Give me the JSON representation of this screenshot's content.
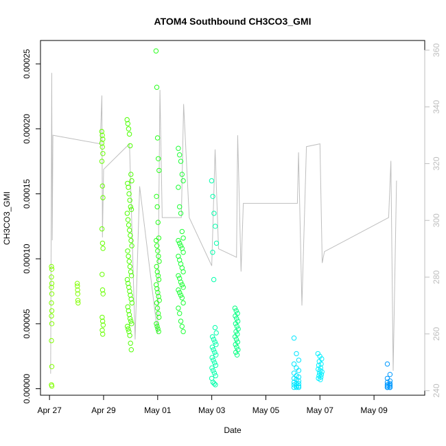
{
  "chart_data": {
    "type": "scatter",
    "title": "ATOM4 Southbound CH3CO3_GMI",
    "xlabel": "Date",
    "ylabel": "CH3CO3_GMI",
    "x_ticks": [
      "Apr 27",
      "Apr 29",
      "May 01",
      "May 03",
      "May 05",
      "May 07",
      "May 09"
    ],
    "y_ticks": [
      "0.00000",
      "0.00005",
      "0.00010",
      "0.00015",
      "0.00020",
      "0.00025"
    ],
    "y2_ticks": [
      "240",
      "260",
      "280",
      "300",
      "320",
      "340",
      "360"
    ],
    "xlim": [
      "2018-04-26T16:00",
      "2018-05-10T21:00"
    ],
    "ylim": [
      -5e-06,
      0.000268
    ],
    "y2lim": [
      238.4,
      363.4
    ],
    "grid": false,
    "colors": {
      "secondary_line": "#bebebe",
      "axis": "#000000",
      "right_axis": "#bebebe",
      "palette": [
        "#80ff00",
        "#33ff00",
        "#00ff4d",
        "#00ff80",
        "#00ffcc",
        "#00e6ff",
        "#00c8ff",
        "#0099ff"
      ]
    },
    "series": [
      {
        "clusters": [
          {
            "t": "2018-04-27T02:00",
            "dt": 0.02,
            "c": "#80ff00",
            "y": [
              9.4e-05,
              9.2e-05,
              8.6e-05,
              8.1e-05,
              7.8e-05,
              7.3e-05,
              6.6e-05,
              6e-05,
              5.6e-05,
              5e-05,
              3.7e-05,
              1.7e-05,
              3e-06,
              2e-06
            ]
          },
          {
            "t": "2018-04-28T01:00",
            "dt": 0.03,
            "c": "#80ff00",
            "y": [
              8.1e-05,
              7.9e-05,
              7.6e-05,
              7.3e-05,
              6.8e-05,
              6.6e-05
            ]
          },
          {
            "t": "2018-04-28T23:00",
            "dt": 0.05,
            "c": "#66ff00",
            "y": [
              0.000198,
              0.000195,
              0.000192,
              0.000189,
              0.000186,
              0.000181,
              0.000175,
              0.000156,
              0.000147,
              0.000123,
              0.000112,
              0.000108,
              8.8e-05,
              7.6e-05,
              7.3e-05,
              5.5e-05,
              5.2e-05,
              4.9e-05,
              4.5e-05,
              4.2e-05
            ]
          },
          {
            "t": "2018-04-29T23:00",
            "dt": 0.18,
            "c": "#4dff00",
            "y": [
              0.000207,
              0.000204,
              0.0002,
              0.000196,
              0.000187,
              0.000165,
              0.00016,
              0.000158,
              0.000155,
              0.00015,
              0.000145,
              0.00014,
              0.000138,
              0.000135,
              0.00013,
              0.000126,
              0.000122,
              0.000118,
              0.000114,
              0.00011,
              0.000106,
              0.000102,
              9.8e-05,
              9.4e-05,
              9e-05,
              8.7e-05,
              8.4e-05,
              8.1e-05,
              7.8e-05,
              7.5e-05,
              7.2e-05,
              6.9e-05,
              6.6e-05,
              6.3e-05,
              6e-05,
              5.7e-05,
              5.4e-05,
              5.2e-05,
              5e-05,
              4.8e-05,
              4.6e-05,
              4.4e-05,
              4.1e-05,
              3.5e-05,
              3e-05
            ]
          },
          {
            "t": "2018-05-01T00:00",
            "dt": 0.12,
            "c": "#26ff1a",
            "y": [
              0.00026,
              0.000232,
              0.000193,
              0.000177,
              0.000168,
              0.000148,
              0.00014,
              0.000128,
              0.000116,
              0.000114,
              0.00011,
              0.000106,
              0.000102,
              9.8e-05,
              9.4e-05,
              9e-05,
              8.7e-05,
              8.4e-05,
              8e-05,
              7.7e-05,
              7.4e-05,
              7.1e-05,
              6.8e-05,
              6.6e-05,
              6.2e-05,
              5.8e-05,
              5.5e-05,
              5e-05,
              4.8e-05,
              4.6e-05,
              4.4e-05
            ]
          },
          {
            "t": "2018-05-01T21:00",
            "dt": 0.22,
            "c": "#1aff33",
            "y": [
              0.000185,
              0.00018,
              0.000175,
              0.000165,
              0.00016,
              0.000155,
              0.00014,
              0.000135,
              0.000121,
              0.000116,
              0.000114,
              0.000112,
              0.00011,
              0.000108,
              0.000105,
              0.000102,
              9.9e-05,
              9.6e-05,
              9.3e-05,
              9e-05,
              8.7e-05,
              8.5e-05,
              8.2e-05,
              8e-05,
              7.8e-05,
              7.6e-05,
              7.4e-05,
              7.2e-05,
              7e-05,
              6.6e-05,
              6.2e-05,
              5.8e-05,
              5.2e-05,
              4.8e-05,
              4.4e-05
            ]
          },
          {
            "t": "2018-05-03T02:00",
            "dt": 0.18,
            "c": "#00ffaa",
            "y": [
              0.00016,
              0.000148,
              0.000135,
              0.000125,
              0.000112,
              0.000105,
              8.4e-05,
              4.7e-05,
              4.3e-05,
              4e-05,
              3.8e-05,
              3.6e-05,
              3.4e-05,
              3.2e-05,
              3e-05,
              2.8e-05,
              2.6e-05,
              2.4e-05,
              2.2e-05,
              2e-05,
              1.8e-05,
              1.6e-05,
              1.4e-05,
              1.2e-05,
              1e-05,
              8e-06,
              5e-06,
              4e-06,
              3e-06
            ]
          },
          {
            "t": "2018-05-03T22:00",
            "dt": 0.12,
            "c": "#00ff80",
            "y": [
              6.2e-05,
              6e-05,
              5.8e-05,
              5.6e-05,
              5.4e-05,
              5.2e-05,
              5e-05,
              4.8e-05,
              4.6e-05,
              4.4e-05,
              4.2e-05,
              4e-05,
              3.8e-05,
              3.6e-05,
              3.4e-05,
              3.2e-05,
              3e-05,
              2.8e-05,
              2.6e-05
            ]
          },
          {
            "t": "2018-05-06T04:00",
            "dt": 0.25,
            "c": "#00e6ff",
            "y": [
              3.9e-05,
              2.7e-05,
              2.2e-05,
              1.9e-05,
              1.6e-05,
              1.4e-05,
              1.2e-05,
              1e-05,
              9e-06,
              8e-06,
              7e-06,
              6e-06,
              5e-06,
              4e-06,
              4e-06,
              3e-06,
              2e-06,
              2e-06,
              1e-06,
              1e-06,
              1e-06
            ]
          },
          {
            "t": "2018-05-07T00:00",
            "dt": 0.15,
            "c": "#00f0ff",
            "y": [
              2.7e-05,
              2.5e-05,
              2.3e-05,
              2.1e-05,
              1.9e-05,
              1.8e-05,
              1.6e-05,
              1.5e-05,
              1.4e-05,
              1.3e-05,
              1.2e-05,
              1.1e-05,
              1e-05,
              9e-06,
              8e-06,
              7e-06
            ]
          },
          {
            "t": "2018-05-09T14:00",
            "dt": 0.18,
            "c": "#0099ff",
            "y": [
              1.9e-05,
              1.1e-05,
              8e-06,
              6e-06,
              5e-06,
              4e-06,
              3e-06,
              3e-06,
              2e-06,
              2e-06,
              1e-06,
              1e-06,
              1e-06,
              1e-06
            ]
          }
        ]
      },
      {
        "type": "line",
        "axis": "right",
        "trace": [
          {
            "t": "2018-04-27T01:00",
            "y": 246
          },
          {
            "t": "2018-04-27T02:00",
            "y": 352
          },
          {
            "t": "2018-04-27T02:30",
            "y": 293
          },
          {
            "t": "2018-04-27T03:00",
            "y": 330
          },
          {
            "t": "2018-04-28T21:00",
            "y": 327
          },
          {
            "t": "2018-04-28T22:30",
            "y": 344
          },
          {
            "t": "2018-04-28T23:00",
            "y": 294
          },
          {
            "t": "2018-04-29T00:00",
            "y": 318
          },
          {
            "t": "2018-04-29T23:00",
            "y": 327
          },
          {
            "t": "2018-04-30T04:00",
            "y": 258
          },
          {
            "t": "2018-04-30T08:00",
            "y": 312
          },
          {
            "t": "2018-05-01T00:00",
            "y": 260
          },
          {
            "t": "2018-05-01T02:00",
            "y": 346
          },
          {
            "t": "2018-05-01T04:00",
            "y": 301
          },
          {
            "t": "2018-05-01T21:00",
            "y": 301
          },
          {
            "t": "2018-05-01T23:00",
            "y": 341
          },
          {
            "t": "2018-05-02T04:00",
            "y": 301
          },
          {
            "t": "2018-05-03T00:00",
            "y": 284
          },
          {
            "t": "2018-05-03T03:00",
            "y": 325
          },
          {
            "t": "2018-05-03T06:00",
            "y": 290
          },
          {
            "t": "2018-05-03T22:00",
            "y": 287
          },
          {
            "t": "2018-05-03T23:00",
            "y": 330
          },
          {
            "t": "2018-05-04T02:00",
            "y": 282
          },
          {
            "t": "2018-05-04T04:00",
            "y": 306
          },
          {
            "t": "2018-05-06T04:00",
            "y": 306
          },
          {
            "t": "2018-05-06T05:00",
            "y": 324
          },
          {
            "t": "2018-05-06T08:00",
            "y": 270
          },
          {
            "t": "2018-05-06T12:00",
            "y": 326
          },
          {
            "t": "2018-05-07T00:00",
            "y": 327
          },
          {
            "t": "2018-05-07T02:00",
            "y": 285
          },
          {
            "t": "2018-05-07T04:00",
            "y": 289
          },
          {
            "t": "2018-05-09T13:00",
            "y": 301
          },
          {
            "t": "2018-05-09T15:00",
            "y": 321
          },
          {
            "t": "2018-05-09T17:00",
            "y": 247
          },
          {
            "t": "2018-05-09T20:00",
            "y": 314
          }
        ]
      }
    ]
  }
}
